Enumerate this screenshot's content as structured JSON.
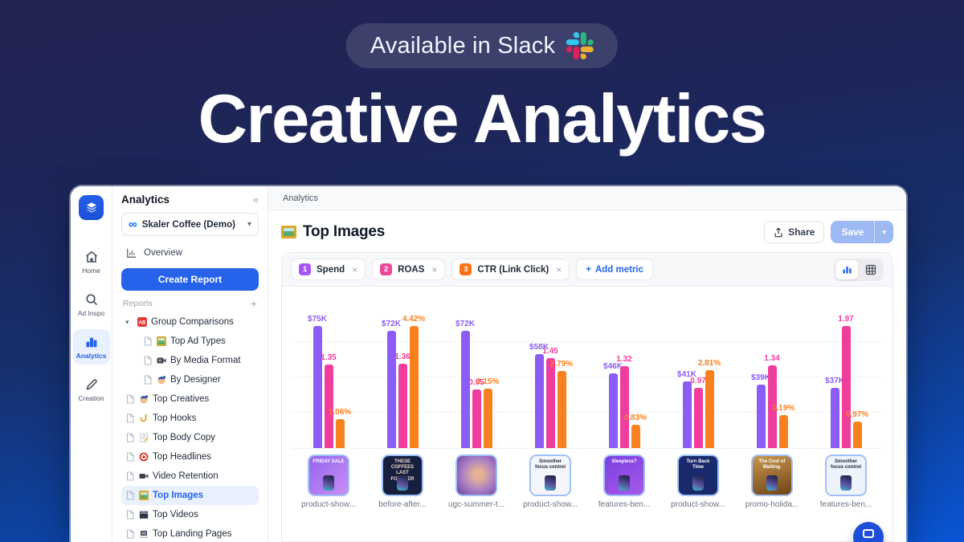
{
  "hero": {
    "badge_text": "Available in Slack",
    "badge_icon": "slack-logo",
    "title": "Creative Analytics"
  },
  "app": {
    "rail": {
      "logo_icon": "layers-logo",
      "items": [
        {
          "label": "Home",
          "icon": "home",
          "active": false
        },
        {
          "label": "Ad Inspo",
          "icon": "search",
          "active": false
        },
        {
          "label": "Analytics",
          "icon": "bars",
          "active": true
        },
        {
          "label": "Creation",
          "icon": "pencil",
          "active": false
        }
      ]
    },
    "panel": {
      "title": "Analytics",
      "collapse_glyph": "«",
      "account_name": "Skaler Coffee (Demo)",
      "account_icon": "meta-infinity",
      "overview_label": "Overview",
      "create_report_label": "Create Report",
      "reports_label": "Reports",
      "add_report_glyph": "+",
      "tree": [
        {
          "label": "Group Comparisons",
          "icon": "ab",
          "group": true,
          "indent": false,
          "selected": false
        },
        {
          "label": "Top Ad Types",
          "icon": "picture",
          "group": false,
          "indent": true,
          "selected": false
        },
        {
          "label": "By Media Format",
          "icon": "camera",
          "group": false,
          "indent": true,
          "selected": false
        },
        {
          "label": "By Designer",
          "icon": "artist",
          "group": false,
          "indent": true,
          "selected": false
        },
        {
          "label": "Top Creatives",
          "icon": "artist",
          "group": false,
          "indent": false,
          "selected": false
        },
        {
          "label": "Top Hooks",
          "icon": "hook",
          "group": false,
          "indent": false,
          "selected": false
        },
        {
          "label": "Top Body Copy",
          "icon": "memo",
          "group": false,
          "indent": false,
          "selected": false
        },
        {
          "label": "Top Headlines",
          "icon": "dart",
          "group": false,
          "indent": false,
          "selected": false
        },
        {
          "label": "Video Retention",
          "icon": "videocam",
          "group": false,
          "indent": false,
          "selected": false
        },
        {
          "label": "Top Images",
          "icon": "picture",
          "group": false,
          "indent": false,
          "selected": true
        },
        {
          "label": "Top Videos",
          "icon": "clapper",
          "group": false,
          "indent": false,
          "selected": false
        },
        {
          "label": "Top Landing Pages",
          "icon": "laptop",
          "group": false,
          "indent": false,
          "selected": false
        }
      ]
    },
    "breadcrumb": "Analytics",
    "page": {
      "title": "Top Images",
      "title_icon": "framed-picture",
      "share_label": "Share",
      "save_label": "Save"
    },
    "metrics": [
      {
        "num": "1",
        "label": "Spend",
        "color": "#a855f7"
      },
      {
        "num": "2",
        "label": "ROAS",
        "color": "#ec4899"
      },
      {
        "num": "3",
        "label": "CTR (Link Click)",
        "color": "#f97316"
      }
    ],
    "add_metric_label": "Add metric",
    "colors": {
      "accent": "#2563eb",
      "save_disabled": "#9db9f3",
      "selected_bg": "#e9f0fe"
    }
  },
  "chart_data": {
    "type": "bar",
    "title": "Top Images",
    "legend": [
      "Spend",
      "ROAS",
      "CTR (Link Click)"
    ],
    "scales": "independent per metric, no visible axes",
    "grid": true,
    "categories": [
      "product-show...",
      "before-after...",
      "ugc-summer-t...",
      "product-show...",
      "features-ben...",
      "product-show...",
      "promo-holida...",
      "features-ben..."
    ],
    "series": [
      {
        "name": "Spend",
        "color": "#8b5cf6",
        "unit": "$K",
        "max": 78,
        "values": [
          75,
          72,
          72,
          58,
          46,
          41,
          39,
          37
        ],
        "display": [
          "$75K",
          "$72K",
          "$72K",
          "$58K",
          "$46K",
          "$41K",
          "$39K",
          "$37K"
        ]
      },
      {
        "name": "ROAS",
        "color": "#ee3d9d",
        "unit": "x",
        "max": 2.05,
        "values": [
          1.35,
          1.36,
          0.95,
          1.45,
          1.32,
          0.97,
          1.34,
          1.97
        ],
        "display": [
          "1.35",
          "1.36",
          "0.95",
          "1.45",
          "1.32",
          "0.97",
          "1.34",
          "1.97"
        ]
      },
      {
        "name": "CTR (Link Click)",
        "color": "#f8801d",
        "unit": "%",
        "max": 4.6,
        "values": [
          1.06,
          4.42,
          2.15,
          2.79,
          0.83,
          2.81,
          1.19,
          0.97
        ],
        "display": [
          "1.06%",
          "4.42%",
          "2.15%",
          "2.79%",
          "0.83%",
          "2.81%",
          "1.19%",
          "0.97%"
        ]
      }
    ],
    "thumbs": [
      {
        "caption": "product-show...",
        "style": "t1",
        "text": "FRIDAY SALE"
      },
      {
        "caption": "before-after...",
        "style": "t2",
        "text": "THESE COFFEES LAST FOREVER"
      },
      {
        "caption": "ugc-summer-t...",
        "style": "t3",
        "text": ""
      },
      {
        "caption": "product-show...",
        "style": "t4",
        "text": "Smoother focus control"
      },
      {
        "caption": "features-ben...",
        "style": "t5",
        "text": "Sleepless?"
      },
      {
        "caption": "product-show...",
        "style": "t6",
        "text": "Turn Back Time"
      },
      {
        "caption": "promo-holida...",
        "style": "t7",
        "text": "The Cost of Waiting."
      },
      {
        "caption": "features-ben...",
        "style": "t8",
        "text": "Smoother focus control"
      }
    ]
  }
}
